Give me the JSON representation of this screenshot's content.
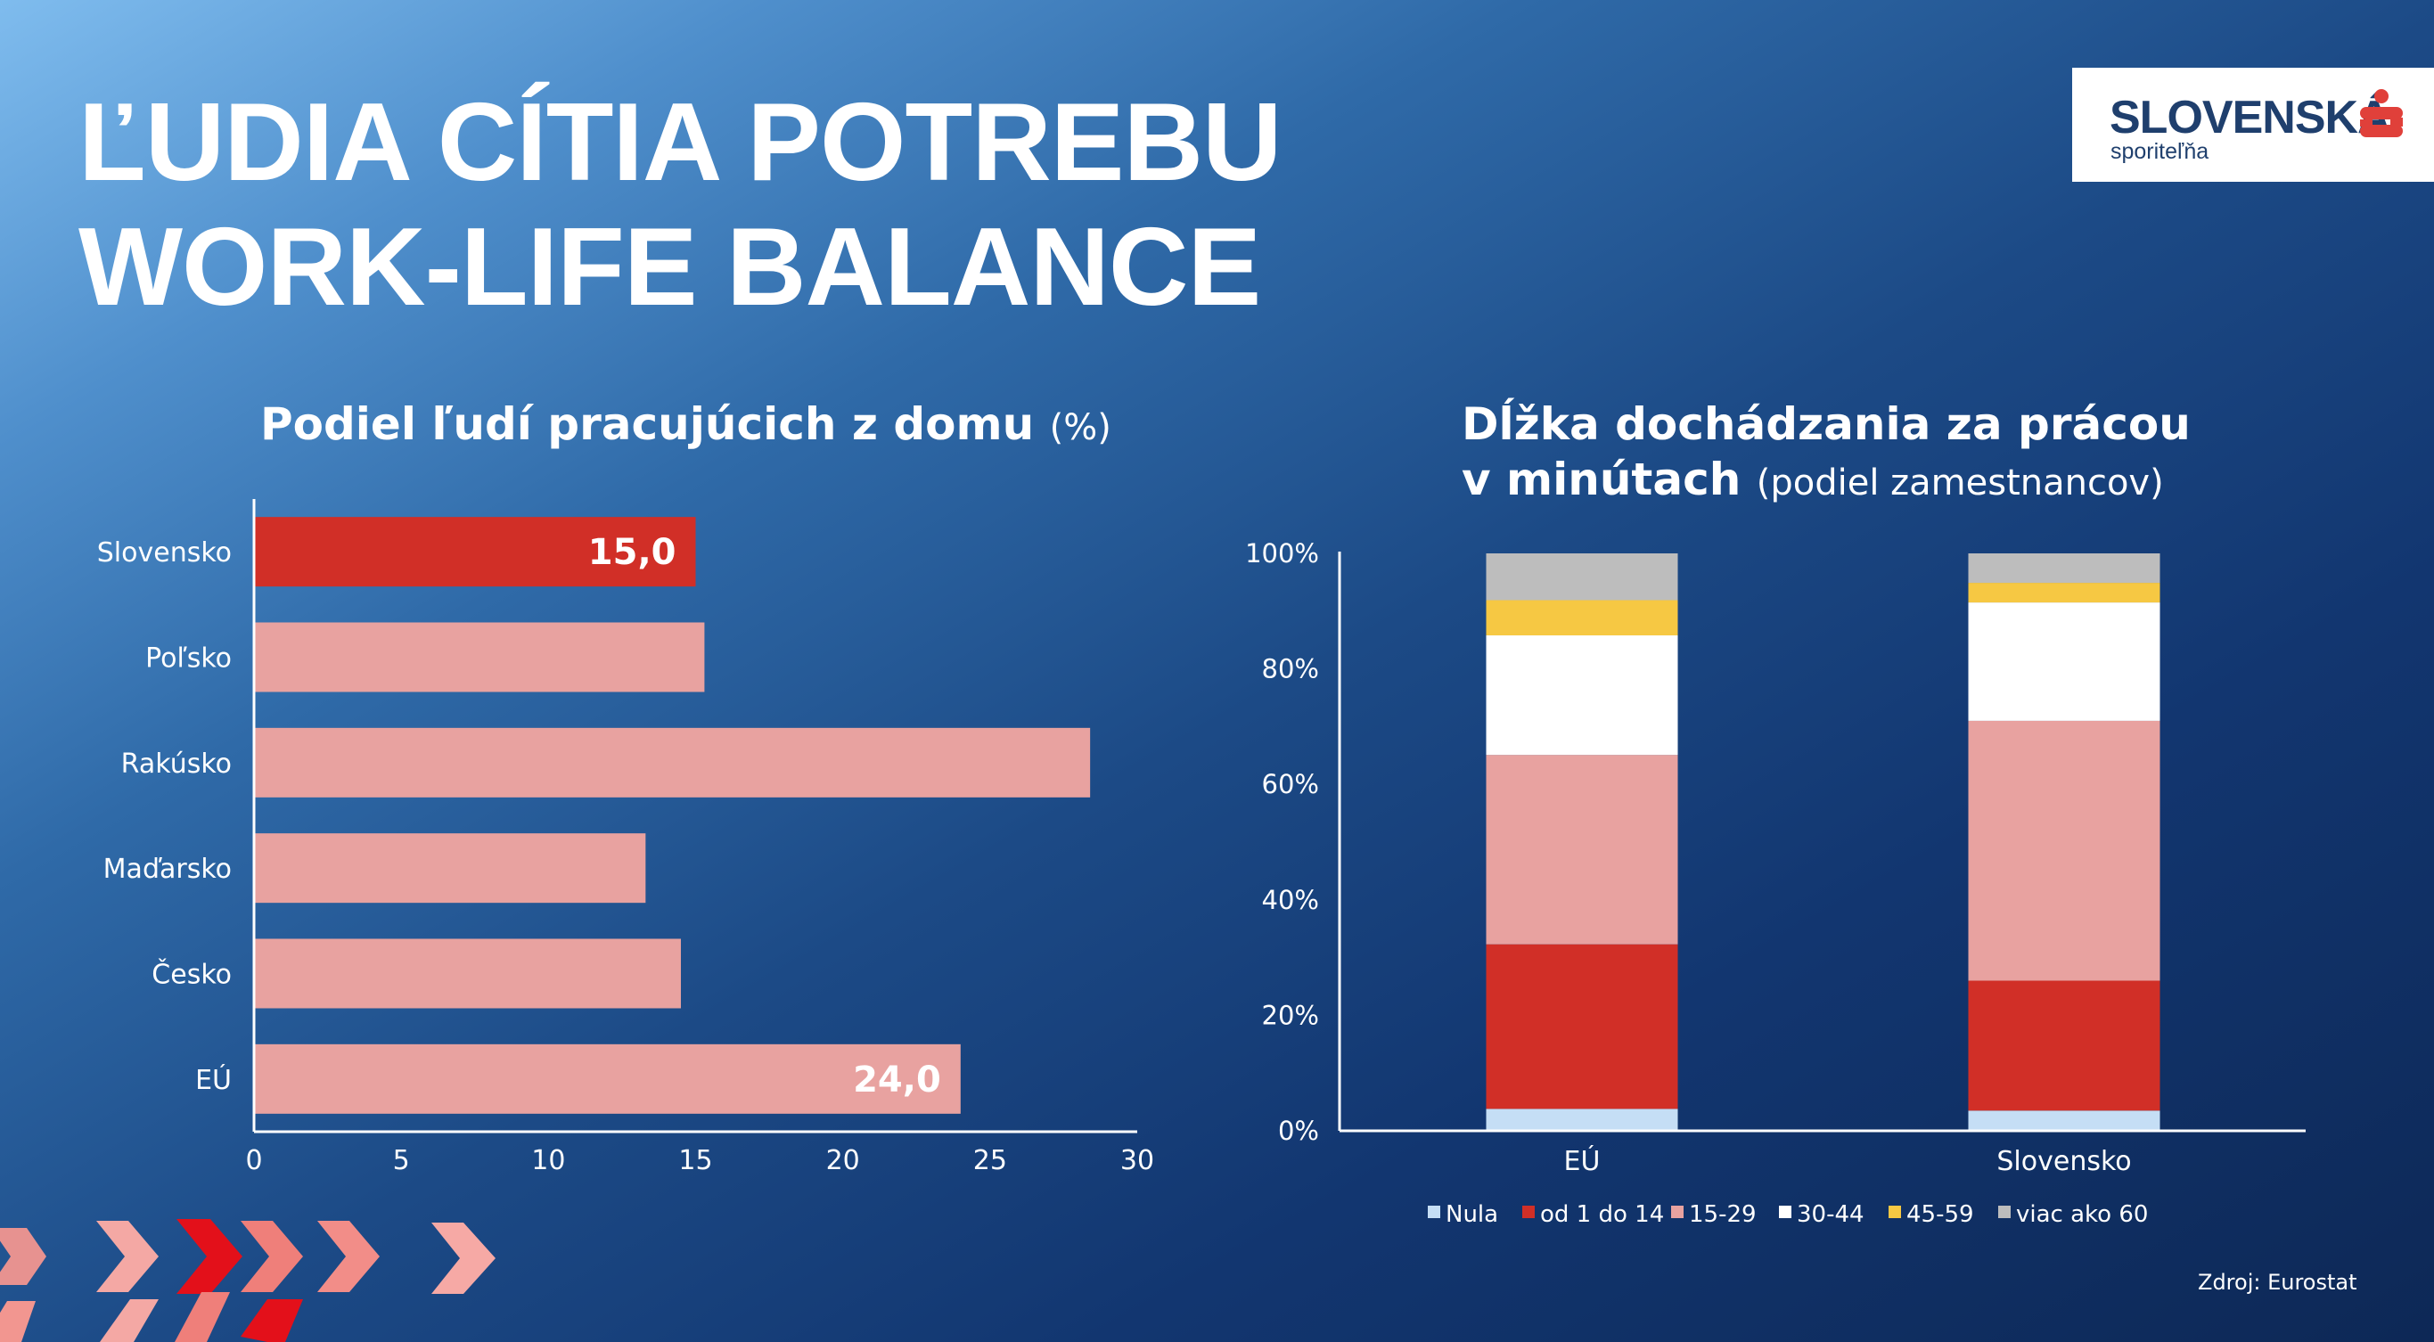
{
  "title": {
    "line1": "ĽUDIA CÍTIA POTREBU",
    "line2": "WORK-LIFE BALANCE"
  },
  "logo": {
    "name": "SLOVENSKÁ",
    "sub": "sporiteľňa",
    "brand_color": "#1f3f6d",
    "mark_color": "#e0403a"
  },
  "source": "Zdroj: Eurostat",
  "colors": {
    "highlight": "#d12f27",
    "bar": "#e8a2a0",
    "axis": "#ffffff"
  },
  "chart_data": [
    {
      "type": "bar",
      "orientation": "horizontal",
      "title": "Podiel ľudí pracujúcich z domu",
      "title_unit": "(%)",
      "categories": [
        "Slovensko",
        "Poľsko",
        "Rakúsko",
        "Maďarsko",
        "Česko",
        "EÚ"
      ],
      "values": [
        15.0,
        15.3,
        28.4,
        13.3,
        14.5,
        24.0
      ],
      "data_labels": [
        "15,0",
        "",
        "",
        "",
        "",
        "24,0"
      ],
      "highlight_index": 0,
      "xlim": [
        0,
        30
      ],
      "xticks": [
        "0",
        "5",
        "10",
        "15",
        "20",
        "25",
        "30"
      ]
    },
    {
      "type": "stacked-bar",
      "title_line1": "Dĺžka dochádzania za prácou",
      "title_line2": "v minútach",
      "title_unit": "(podiel zamestnancov)",
      "categories": [
        "EÚ",
        "Slovensko"
      ],
      "ylim": [
        0,
        100
      ],
      "yticks": [
        "0%",
        "20%",
        "40%",
        "60%",
        "80%",
        "100%"
      ],
      "legend_position": "bottom",
      "series": [
        {
          "name": "Nula",
          "color": "#c5def5",
          "values": [
            3.8,
            3.5
          ]
        },
        {
          "name": "od 1 do 14",
          "color": "#d12f27",
          "values": [
            28.5,
            22.5
          ]
        },
        {
          "name": "15-29",
          "color": "#e8a2a0",
          "values": [
            32.8,
            45.0
          ]
        },
        {
          "name": "30-44",
          "color": "#ffffff",
          "values": [
            20.7,
            20.5
          ]
        },
        {
          "name": "45-59",
          "color": "#f6c843",
          "values": [
            6.1,
            3.4
          ]
        },
        {
          "name": "viac ako 60",
          "color": "#bdbdbd",
          "values": [
            8.1,
            5.1
          ]
        }
      ]
    }
  ]
}
